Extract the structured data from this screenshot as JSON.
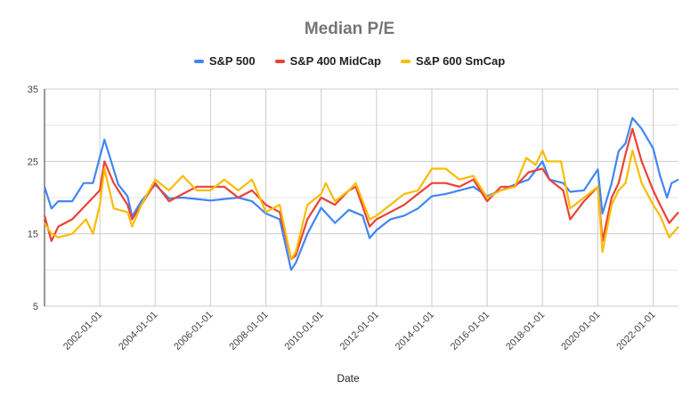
{
  "chart_data": {
    "type": "line",
    "title": "Median P/E",
    "xlabel": "Date",
    "ylabel": "",
    "ylim": [
      5,
      35
    ],
    "yticks": [
      5,
      15,
      25,
      35
    ],
    "xlim": [
      "2000-01",
      "2022-12"
    ],
    "xticks": [
      "2002-01-01",
      "2004-01-01",
      "2006-01-01",
      "2008-01-01",
      "2010-01-01",
      "2012-01-01",
      "2014-01-01",
      "2016-01-01",
      "2018-01-01",
      "2020-01-01",
      "2022-01-01"
    ],
    "grid": true,
    "legend_position": "top",
    "series": [
      {
        "name": "S&P 500",
        "color": "#4285f4",
        "points": [
          [
            "2000-01",
            21.5
          ],
          [
            "2000-04",
            18.5
          ],
          [
            "2000-07",
            19.5
          ],
          [
            "2001-01",
            19.5
          ],
          [
            "2001-06",
            22
          ],
          [
            "2001-10",
            22
          ],
          [
            "2002-03",
            28
          ],
          [
            "2002-09",
            21.8
          ],
          [
            "2003-01",
            20.2
          ],
          [
            "2003-03",
            17.4
          ],
          [
            "2003-07",
            19.5
          ],
          [
            "2004-01",
            21.8
          ],
          [
            "2004-07",
            19.9
          ],
          [
            "2005-01",
            20
          ],
          [
            "2005-07",
            19.8
          ],
          [
            "2006-01",
            19.6
          ],
          [
            "2006-07",
            19.8
          ],
          [
            "2007-01",
            20
          ],
          [
            "2007-07",
            19.5
          ],
          [
            "2008-01",
            17.8
          ],
          [
            "2008-07",
            17
          ],
          [
            "2008-12",
            10
          ],
          [
            "2009-02",
            11
          ],
          [
            "2009-07",
            15
          ],
          [
            "2010-01",
            18.6
          ],
          [
            "2010-07",
            16.5
          ],
          [
            "2011-01",
            18.3
          ],
          [
            "2011-07",
            17.5
          ],
          [
            "2011-10",
            14.4
          ],
          [
            "2012-01",
            15.5
          ],
          [
            "2012-07",
            17
          ],
          [
            "2013-01",
            17.5
          ],
          [
            "2013-07",
            18.5
          ],
          [
            "2014-01",
            20.2
          ],
          [
            "2014-07",
            20.5
          ],
          [
            "2015-01",
            21
          ],
          [
            "2015-07",
            21.5
          ],
          [
            "2016-01",
            20.2
          ],
          [
            "2016-07",
            21
          ],
          [
            "2017-01",
            21.8
          ],
          [
            "2017-07",
            22.5
          ],
          [
            "2018-01",
            25
          ],
          [
            "2018-04",
            22.5
          ],
          [
            "2018-10",
            22
          ],
          [
            "2019-01",
            20.8
          ],
          [
            "2019-07",
            21
          ],
          [
            "2020-01",
            23.9
          ],
          [
            "2020-03",
            17.8
          ],
          [
            "2020-07",
            22
          ],
          [
            "2020-10",
            26.4
          ],
          [
            "2021-01",
            27.5
          ],
          [
            "2021-04",
            31
          ],
          [
            "2021-08",
            29.5
          ],
          [
            "2022-01",
            26.8
          ],
          [
            "2022-04",
            23
          ],
          [
            "2022-07",
            20
          ],
          [
            "2022-09",
            22
          ],
          [
            "2022-12",
            22.5
          ]
        ]
      },
      {
        "name": "S&P 400 MidCap",
        "color": "#ea4335",
        "points": [
          [
            "2000-01",
            17.5
          ],
          [
            "2000-04",
            14
          ],
          [
            "2000-07",
            16
          ],
          [
            "2001-01",
            17
          ],
          [
            "2001-07",
            19
          ],
          [
            "2002-01",
            21
          ],
          [
            "2002-03",
            25
          ],
          [
            "2002-07",
            22
          ],
          [
            "2003-01",
            19
          ],
          [
            "2003-03",
            17
          ],
          [
            "2003-07",
            19
          ],
          [
            "2004-01",
            22
          ],
          [
            "2004-07",
            19.5
          ],
          [
            "2005-01",
            20.5
          ],
          [
            "2005-07",
            21.5
          ],
          [
            "2006-01",
            21.5
          ],
          [
            "2006-07",
            21.5
          ],
          [
            "2007-01",
            20
          ],
          [
            "2007-07",
            21
          ],
          [
            "2008-01",
            19
          ],
          [
            "2008-07",
            18
          ],
          [
            "2008-12",
            11.5
          ],
          [
            "2009-02",
            12
          ],
          [
            "2009-07",
            17
          ],
          [
            "2010-01",
            20
          ],
          [
            "2010-07",
            19
          ],
          [
            "2011-01",
            21
          ],
          [
            "2011-04",
            21.5
          ],
          [
            "2011-10",
            16
          ],
          [
            "2012-01",
            17
          ],
          [
            "2012-07",
            18
          ],
          [
            "2013-01",
            19
          ],
          [
            "2013-07",
            20.5
          ],
          [
            "2014-01",
            22
          ],
          [
            "2014-07",
            22
          ],
          [
            "2015-01",
            21.5
          ],
          [
            "2015-07",
            22.5
          ],
          [
            "2016-01",
            19.5
          ],
          [
            "2016-07",
            21.5
          ],
          [
            "2017-01",
            21.5
          ],
          [
            "2017-07",
            23.5
          ],
          [
            "2018-01",
            24
          ],
          [
            "2018-04",
            22.5
          ],
          [
            "2018-10",
            21
          ],
          [
            "2019-01",
            17
          ],
          [
            "2019-07",
            19.5
          ],
          [
            "2020-01",
            21.5
          ],
          [
            "2020-03",
            14
          ],
          [
            "2020-07",
            20
          ],
          [
            "2020-10",
            22
          ],
          [
            "2021-01",
            26
          ],
          [
            "2021-04",
            29.5
          ],
          [
            "2021-08",
            25
          ],
          [
            "2022-01",
            21
          ],
          [
            "2022-04",
            19
          ],
          [
            "2022-08",
            16.5
          ],
          [
            "2022-12",
            18
          ]
        ]
      },
      {
        "name": "S&P 600 SmCap",
        "color": "#fbbc04",
        "points": [
          [
            "2000-01",
            16.5
          ],
          [
            "2000-04",
            15
          ],
          [
            "2000-07",
            14.5
          ],
          [
            "2001-01",
            15
          ],
          [
            "2001-07",
            17
          ],
          [
            "2001-10",
            15
          ],
          [
            "2002-01",
            19
          ],
          [
            "2002-03",
            24
          ],
          [
            "2002-07",
            18.5
          ],
          [
            "2003-01",
            18
          ],
          [
            "2003-03",
            16
          ],
          [
            "2003-07",
            19
          ],
          [
            "2004-01",
            22.5
          ],
          [
            "2004-07",
            21
          ],
          [
            "2005-01",
            23
          ],
          [
            "2005-07",
            21
          ],
          [
            "2006-01",
            21
          ],
          [
            "2006-07",
            22.5
          ],
          [
            "2007-01",
            21
          ],
          [
            "2007-07",
            22.5
          ],
          [
            "2008-01",
            18
          ],
          [
            "2008-07",
            19
          ],
          [
            "2008-12",
            11.5
          ],
          [
            "2009-02",
            12.5
          ],
          [
            "2009-07",
            19
          ],
          [
            "2010-01",
            20.5
          ],
          [
            "2010-03",
            22
          ],
          [
            "2010-07",
            19.5
          ],
          [
            "2011-01",
            21
          ],
          [
            "2011-04",
            22
          ],
          [
            "2011-10",
            17
          ],
          [
            "2012-01",
            17.5
          ],
          [
            "2012-07",
            19
          ],
          [
            "2013-01",
            20.5
          ],
          [
            "2013-07",
            21
          ],
          [
            "2014-01",
            24
          ],
          [
            "2014-07",
            24
          ],
          [
            "2015-01",
            22.5
          ],
          [
            "2015-07",
            23
          ],
          [
            "2016-01",
            20
          ],
          [
            "2016-07",
            21
          ],
          [
            "2017-01",
            21.5
          ],
          [
            "2017-06",
            25.5
          ],
          [
            "2017-10",
            24.5
          ],
          [
            "2018-01",
            26.5
          ],
          [
            "2018-03",
            25
          ],
          [
            "2018-09",
            25
          ],
          [
            "2019-01",
            18.5
          ],
          [
            "2019-07",
            20
          ],
          [
            "2020-01",
            21.5
          ],
          [
            "2020-03",
            12.5
          ],
          [
            "2020-07",
            19
          ],
          [
            "2020-10",
            21
          ],
          [
            "2021-01",
            22
          ],
          [
            "2021-04",
            26.5
          ],
          [
            "2021-08",
            22
          ],
          [
            "2022-01",
            19
          ],
          [
            "2022-04",
            17.5
          ],
          [
            "2022-08",
            14.5
          ],
          [
            "2022-12",
            16
          ]
        ]
      }
    ]
  }
}
